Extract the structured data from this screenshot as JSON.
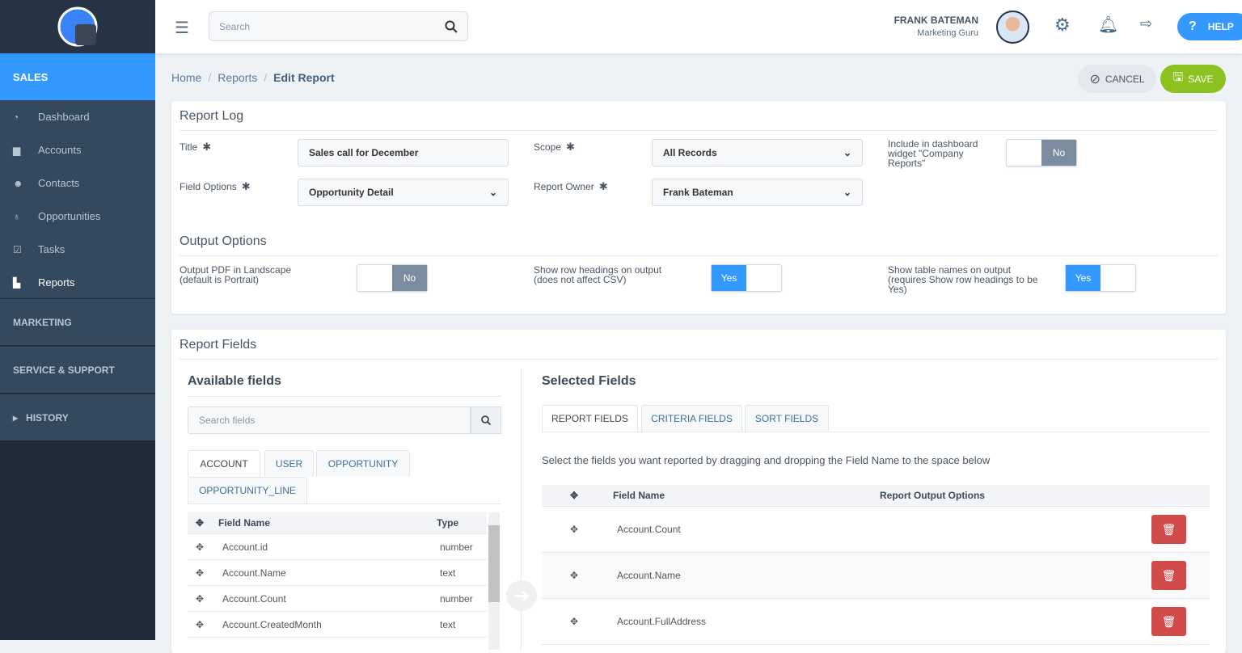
{
  "sidebar": {
    "section": "SALES",
    "items": [
      {
        "label": "Dashboard",
        "icon": "dashboard-icon",
        "glyph": "◔"
      },
      {
        "label": "Accounts",
        "icon": "briefcase-icon",
        "glyph": "▆"
      },
      {
        "label": "Contacts",
        "icon": "users-icon",
        "glyph": "☻"
      },
      {
        "label": "Opportunities",
        "icon": "lightbulb-icon",
        "glyph": "♁"
      },
      {
        "label": "Tasks",
        "icon": "check-square-icon",
        "glyph": "☑"
      },
      {
        "label": "Reports",
        "icon": "file-icon",
        "glyph": "▙"
      }
    ],
    "sections": [
      "MARKETING",
      "SERVICE & SUPPORT",
      "HISTORY"
    ]
  },
  "header": {
    "search_placeholder": "Search",
    "user_name": "FRANK BATEMAN",
    "user_role": "Marketing Guru",
    "help": "HELP"
  },
  "breadcrumb": [
    "Home",
    "Reports",
    "Edit Report"
  ],
  "actions": {
    "cancel": "CANCEL",
    "save": "SAVE"
  },
  "colors": {
    "accent": "#3399ff",
    "save": "#8cc21f",
    "danger": "#d24b4b"
  },
  "report_log": {
    "title": "Report Log",
    "title_label": "Title",
    "title_value": "Sales call for December",
    "field_options_label": "Field Options",
    "field_options_value": "Opportunity Detail",
    "scope_label": "Scope",
    "scope_value": "All Records",
    "owner_label": "Report Owner",
    "owner_value": "Frank Bateman",
    "dashboard_label": "Include in dashboard widget \"Company Reports\"",
    "dashboard_value": "No"
  },
  "output_options": {
    "title": "Output Options",
    "landscape_label": "Output PDF in Landscape (default is Portrait)",
    "landscape_value": "No",
    "row_headings_label": "Show row headings on output (does not affect CSV)",
    "row_headings_value": "Yes",
    "table_names_label": "Show table names on output (requires Show row headings to be Yes)",
    "table_names_value": "Yes"
  },
  "report_fields": {
    "title": "Report Fields",
    "available": {
      "title": "Available fields",
      "search_placeholder": "Search fields",
      "tabs": [
        "ACCOUNT",
        "USER",
        "OPPORTUNITY",
        "OPPORTUNITY_LINE"
      ],
      "columns": [
        "Field Name",
        "Type"
      ],
      "rows": [
        {
          "name": "Account.id",
          "type": "number"
        },
        {
          "name": "Account.Name",
          "type": "text"
        },
        {
          "name": "Account.Count",
          "type": "number"
        },
        {
          "name": "Account.CreatedMonth",
          "type": "text"
        }
      ]
    },
    "selected": {
      "title": "Selected Fields",
      "tabs": [
        "REPORT FIELDS",
        "CRITERIA FIELDS",
        "SORT FIELDS"
      ],
      "instruction": "Select the fields you want reported by dragging and dropping the Field Name to the space below",
      "columns": [
        "Field Name",
        "Report Output Options"
      ],
      "rows": [
        "Account.Count",
        "Account.Name",
        "Account.FullAddress"
      ]
    }
  }
}
